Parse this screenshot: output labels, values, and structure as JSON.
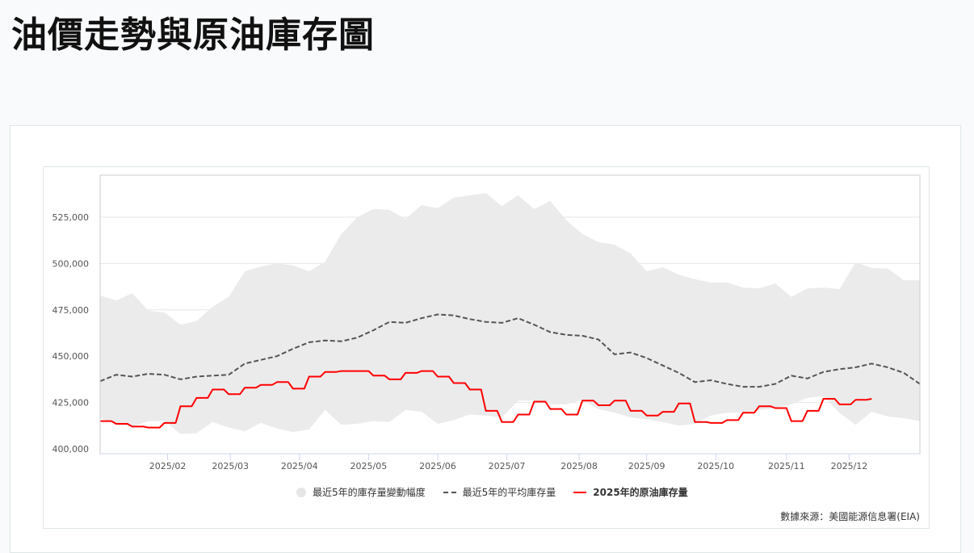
{
  "page": {
    "title": "油價走勢與原油庫存圖"
  },
  "legend": {
    "range_label": "最近5年的庫存量變動幅度",
    "avg_label": "最近5年的平均庫存量",
    "current_label": "2025年的原油庫存量"
  },
  "source": "數據來源：美國能源信息署(EIA)",
  "colors": {
    "band": "#ebebeb",
    "avg_line": "#555555",
    "current_line": "#ff0000",
    "grid": "#e6e6e6",
    "axis": "#ccd6eb"
  },
  "chart_data": {
    "type": "line",
    "title": "油價走勢與原油庫存圖",
    "xlabel": "",
    "ylabel": "",
    "ylim": [
      398000,
      547600
    ],
    "y_ticks": [
      400000,
      425000,
      450000,
      475000,
      500000,
      525000
    ],
    "y_tick_labels": [
      "400,000",
      "425,000",
      "450,000",
      "475,000",
      "500,000",
      "525,000"
    ],
    "x_tick_labels": [
      "2025/02",
      "2025/03",
      "2025/04",
      "2025/05",
      "2025/06",
      "2025/07",
      "2025/08",
      "2025/09",
      "2025/10",
      "2025/11",
      "2025/12"
    ],
    "x_tick_week_positions": [
      4.2,
      8.1,
      12.4,
      16.7,
      21.0,
      25.3,
      29.8,
      34.0,
      38.3,
      42.7,
      46.6
    ],
    "grid": true,
    "legend_position": "bottom",
    "weeks": 52,
    "series": [
      {
        "name": "最近5年的庫存量變動幅度",
        "type": "arearange",
        "upper": [
          482700,
          480000,
          484000,
          474500,
          473600,
          467000,
          469000,
          476700,
          482000,
          495800,
          498400,
          500000,
          499000,
          495800,
          501000,
          515900,
          525000,
          529400,
          528900,
          524100,
          531500,
          529800,
          535500,
          536800,
          538000,
          531000,
          536800,
          529400,
          533700,
          523300,
          515900,
          511500,
          510200,
          505400,
          495800,
          498000,
          494000,
          491500,
          489700,
          489700,
          487000,
          486600,
          489300,
          482000,
          486600,
          487000,
          486200,
          500600,
          497600,
          497200,
          491000,
          491000
        ],
        "lower": [
          416500,
          413500,
          412000,
          415000,
          415000,
          408000,
          408500,
          414500,
          411500,
          409500,
          414000,
          411000,
          409000,
          410500,
          421000,
          413000,
          413500,
          415000,
          414500,
          421000,
          420000,
          413500,
          415500,
          418500,
          418000,
          417000,
          426000,
          426000,
          424000,
          424000,
          426500,
          421500,
          419500,
          417000,
          416000,
          414500,
          412500,
          413500,
          418000,
          419500,
          419500,
          421000,
          422000,
          424000,
          427500,
          428500,
          419500,
          413000,
          420000,
          417500,
          416500,
          415000
        ]
      },
      {
        "name": "最近5年的平均庫存量",
        "type": "line",
        "dash": true,
        "values": [
          436500,
          440000,
          439000,
          440500,
          440000,
          437500,
          439000,
          439500,
          440000,
          446000,
          448000,
          450000,
          454000,
          457500,
          458500,
          458000,
          460000,
          464000,
          468500,
          468000,
          470500,
          472500,
          472000,
          470000,
          468500,
          468000,
          470500,
          467000,
          463000,
          461500,
          461000,
          459000,
          451000,
          452000,
          449000,
          445000,
          441000,
          436000,
          437000,
          435000,
          433500,
          433500,
          435000,
          439500,
          438000,
          441500,
          443000,
          444000,
          446000,
          444000,
          441000,
          435000
        ],
        "notes": "approximate weekly reading; last tick near 2025/12-end"
      },
      {
        "name": "2025年的原油庫存量",
        "type": "step-line",
        "values": [
          415000,
          413500,
          412000,
          411500,
          414000,
          423000,
          427500,
          432000,
          429500,
          433000,
          434500,
          436000,
          432500,
          439000,
          441500,
          442000,
          442000,
          439500,
          437500,
          441000,
          442000,
          439000,
          435500,
          432000,
          420500,
          414500,
          418500,
          425500,
          421500,
          418500,
          426000,
          423500,
          426000,
          420500,
          418000,
          420000,
          424500,
          414500,
          414000,
          415500,
          419500,
          423000,
          422000,
          415000,
          420500,
          427000,
          424000,
          426500,
          427000
        ]
      }
    ]
  }
}
